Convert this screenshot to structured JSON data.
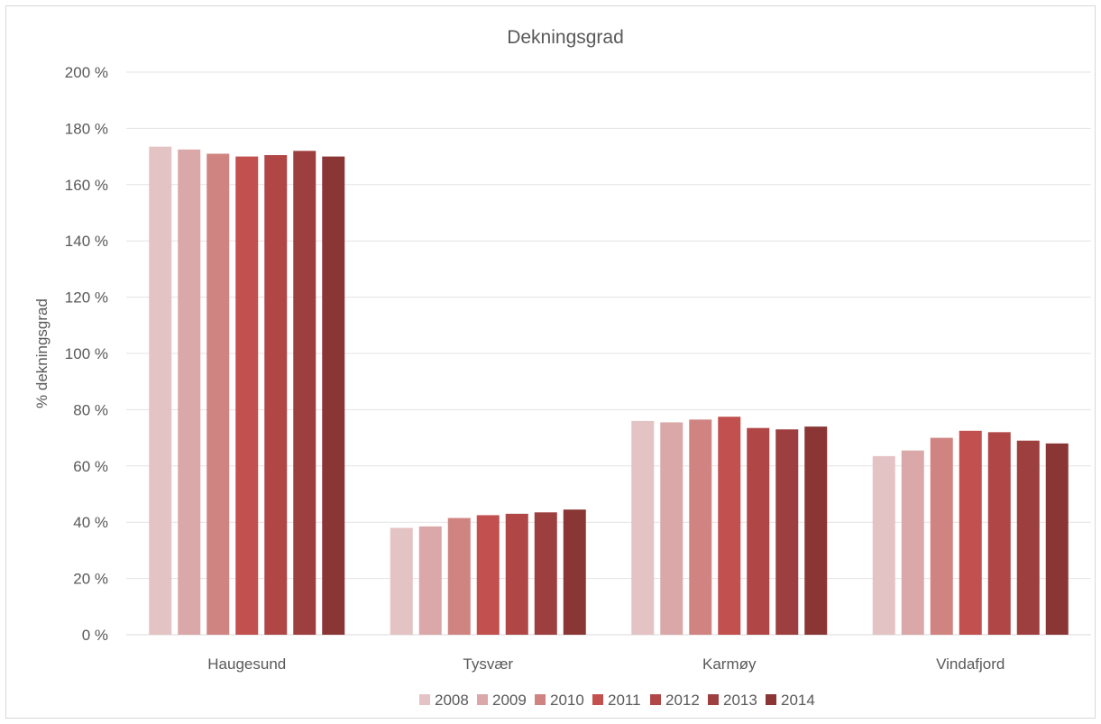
{
  "chart_data": {
    "type": "bar",
    "title": "Dekningsgrad",
    "xlabel": "",
    "ylabel": "% dekningsgrad",
    "ylim": [
      0,
      200
    ],
    "yticks": [
      0,
      20,
      40,
      60,
      80,
      100,
      120,
      140,
      160,
      180,
      200
    ],
    "ytick_labels": [
      "0 %",
      "20 %",
      "40 %",
      "60 %",
      "80 %",
      "100 %",
      "120 %",
      "140 %",
      "160 %",
      "180 %",
      "200 %"
    ],
    "grid": true,
    "legend_position": "bottom",
    "categories": [
      "Haugesund",
      "Tysvær",
      "Karmøy",
      "Vindafjord"
    ],
    "series": [
      {
        "name": "2008",
        "color": "#e4c3c4",
        "values": [
          173.5,
          38,
          76,
          63.5
        ]
      },
      {
        "name": "2009",
        "color": "#dba8a9",
        "values": [
          172.5,
          38.5,
          75.5,
          65.5
        ]
      },
      {
        "name": "2010",
        "color": "#d08482",
        "values": [
          171,
          41.5,
          76.5,
          70
        ]
      },
      {
        "name": "2011",
        "color": "#c2504f",
        "values": [
          170,
          42.5,
          77.5,
          72.5
        ]
      },
      {
        "name": "2012",
        "color": "#b04646",
        "values": [
          170.5,
          43,
          73.5,
          72
        ]
      },
      {
        "name": "2013",
        "color": "#9c3f3e",
        "values": [
          172,
          43.5,
          73,
          69
        ]
      },
      {
        "name": "2014",
        "color": "#893635",
        "values": [
          170,
          44.5,
          74,
          68
        ]
      }
    ]
  }
}
